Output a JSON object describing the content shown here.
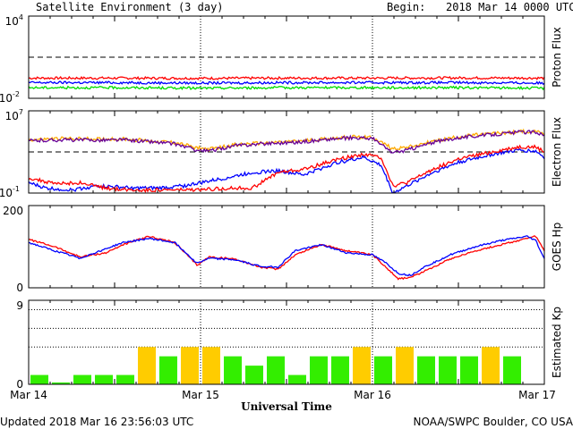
{
  "header": {
    "title": "Satellite Environment (3 day)",
    "begin_label": "Begin:",
    "begin_value": "2018 Mar 14 0000 UTC"
  },
  "footer": {
    "updated": "Updated 2018 Mar 16 23:56:03 UTC",
    "credit": "NOAA/SWPC Boulder, CO USA"
  },
  "x_axis": {
    "label": "Universal Time",
    "ticks": [
      "Mar 14",
      "Mar 15",
      "Mar 16",
      "Mar 17"
    ]
  },
  "chart_data": [
    {
      "type": "line",
      "ylabel": "Proton Flux",
      "ylabel_parts": [
        "Proton",
        "Flux"
      ],
      "y_scale": "log",
      "ylim": [
        0.01,
        10000
      ],
      "y_tick_labels": [
        {
          "base": "10",
          "exp": "4"
        },
        {
          "base": "10",
          "exp": "-2"
        }
      ],
      "threshold": 10,
      "x_range_days": [
        0,
        3
      ],
      "series": [
        {
          "color": "#ff0000",
          "x": [
            0,
            0.5,
            1,
            1.5,
            2,
            2.5,
            3
          ],
          "y": [
            0.3,
            0.3,
            0.29,
            0.3,
            0.3,
            0.31,
            0.3
          ]
        },
        {
          "color": "#0000ff",
          "x": [
            0,
            0.5,
            1,
            1.5,
            2,
            2.5,
            3
          ],
          "y": [
            0.14,
            0.14,
            0.13,
            0.14,
            0.14,
            0.14,
            0.13
          ]
        },
        {
          "color": "#00dd00",
          "x": [
            0,
            0.5,
            1,
            1.5,
            2,
            2.5,
            3
          ],
          "y": [
            0.06,
            0.06,
            0.055,
            0.06,
            0.06,
            0.06,
            0.055
          ]
        }
      ]
    },
    {
      "type": "line",
      "ylabel": "Electron Flux",
      "ylabel_parts": [
        "Electron",
        "Flux"
      ],
      "y_scale": "log",
      "ylim": [
        0.1,
        10000000
      ],
      "y_tick_labels": [
        {
          "base": "10",
          "exp": "7"
        },
        {
          "base": "10",
          "exp": "-1"
        }
      ],
      "threshold": 1000,
      "x_range_days": [
        0,
        3
      ],
      "series": [
        {
          "color": "#ffaa00",
          "x": [
            0,
            0.2,
            0.4,
            0.55,
            0.7,
            0.85,
            0.98,
            1.05,
            1.2,
            1.4,
            1.55,
            1.75,
            1.9,
            2.0,
            2.12,
            2.2,
            2.35,
            2.5,
            2.7,
            2.85,
            2.95,
            3.0
          ],
          "y": [
            15000,
            20000,
            18000,
            18000,
            12000,
            8000,
            2500,
            1800,
            5000,
            8000,
            10000,
            20000,
            30000,
            25000,
            2000,
            3000,
            10000,
            30000,
            60000,
            90000,
            110000,
            60000
          ]
        },
        {
          "color": "#660099",
          "x": [
            0,
            0.2,
            0.4,
            0.55,
            0.7,
            0.85,
            0.98,
            1.05,
            1.2,
            1.4,
            1.55,
            1.75,
            1.9,
            2.0,
            2.12,
            2.2,
            2.35,
            2.5,
            2.7,
            2.85,
            2.95,
            3.0
          ],
          "y": [
            12000,
            15000,
            14000,
            15000,
            10000,
            6000,
            1500,
            1200,
            4000,
            7000,
            8500,
            17000,
            25000,
            20000,
            800,
            1500,
            8000,
            25000,
            50000,
            80000,
            90000,
            40000
          ]
        },
        {
          "color": "#0000ff",
          "x": [
            0,
            0.1,
            0.25,
            0.4,
            0.5,
            0.6,
            0.75,
            0.9,
            1.0,
            1.15,
            1.3,
            1.45,
            1.6,
            1.8,
            1.95,
            2.05,
            2.12,
            2.2,
            2.35,
            2.5,
            2.7,
            2.85,
            2.95,
            3.0
          ],
          "y": [
            1,
            0.3,
            0.2,
            0.5,
            0.4,
            0.3,
            0.3,
            0.5,
            1,
            3,
            10,
            15,
            6,
            100,
            300,
            50,
            0.1,
            0.5,
            10,
            100,
            600,
            1500,
            1200,
            300
          ]
        },
        {
          "color": "#ff0000",
          "x": [
            0,
            0.15,
            0.3,
            0.45,
            0.6,
            0.75,
            0.9,
            1.0,
            1.15,
            1.3,
            1.45,
            1.6,
            1.8,
            1.95,
            2.05,
            2.12,
            2.2,
            2.35,
            2.5,
            2.7,
            2.85,
            2.95,
            3.0
          ],
          "y": [
            3,
            0.8,
            1,
            0.3,
            0.2,
            0.2,
            0.2,
            0.2,
            0.3,
            0.3,
            10,
            20,
            200,
            600,
            300,
            0.5,
            1,
            20,
            200,
            1000,
            3000,
            3000,
            1000
          ]
        }
      ]
    },
    {
      "type": "line",
      "ylabel": "GOES Hp",
      "ylabel_parts": [
        "GOES",
        "Hp"
      ],
      "y_scale": "linear",
      "ylim": [
        0,
        200
      ],
      "y_tick_labels": [
        {
          "base": "200",
          "exp": ""
        },
        {
          "base": "0",
          "exp": ""
        }
      ],
      "x_range_days": [
        0,
        3
      ],
      "series": [
        {
          "color": "#ff0000",
          "x": [
            0,
            0.15,
            0.3,
            0.45,
            0.55,
            0.7,
            0.85,
            0.98,
            1.05,
            1.2,
            1.35,
            1.45,
            1.55,
            1.7,
            1.85,
            2.0,
            2.08,
            2.15,
            2.22,
            2.3,
            2.45,
            2.6,
            2.75,
            2.9,
            2.95,
            3.0
          ],
          "y": [
            118,
            100,
            75,
            85,
            105,
            125,
            110,
            55,
            75,
            70,
            50,
            45,
            80,
            105,
            90,
            80,
            50,
            22,
            25,
            40,
            70,
            90,
            105,
            120,
            125,
            90
          ]
        },
        {
          "color": "#0000ff",
          "x": [
            0,
            0.15,
            0.3,
            0.45,
            0.55,
            0.7,
            0.85,
            0.98,
            1.05,
            1.2,
            1.35,
            1.45,
            1.55,
            1.7,
            1.85,
            2.0,
            2.08,
            2.15,
            2.22,
            2.3,
            2.45,
            2.6,
            2.75,
            2.9,
            2.95,
            3.0
          ],
          "y": [
            110,
            90,
            72,
            95,
            110,
            120,
            110,
            60,
            72,
            68,
            52,
            50,
            90,
            105,
            85,
            80,
            60,
            35,
            30,
            50,
            80,
            100,
            115,
            125,
            115,
            70
          ]
        }
      ]
    },
    {
      "type": "bar",
      "ylabel": "Estimated Kp",
      "ylabel_parts": [
        "Estimated",
        "Kp"
      ],
      "y_scale": "linear",
      "ylim": [
        0,
        9
      ],
      "y_tick_labels": [
        {
          "base": "9",
          "exp": ""
        },
        {
          "base": "0",
          "exp": ""
        }
      ],
      "dotted_levels": [
        4,
        6,
        8
      ],
      "bin_hours": 3,
      "values": [
        1,
        0.2,
        1,
        1,
        1,
        4,
        3,
        4,
        4,
        3,
        2,
        3,
        1,
        3,
        3,
        4,
        3,
        4,
        3,
        3,
        3,
        4,
        3,
        0
      ],
      "colors": {
        "quiet": "#33ee00",
        "active": "#ffcc00"
      }
    }
  ]
}
